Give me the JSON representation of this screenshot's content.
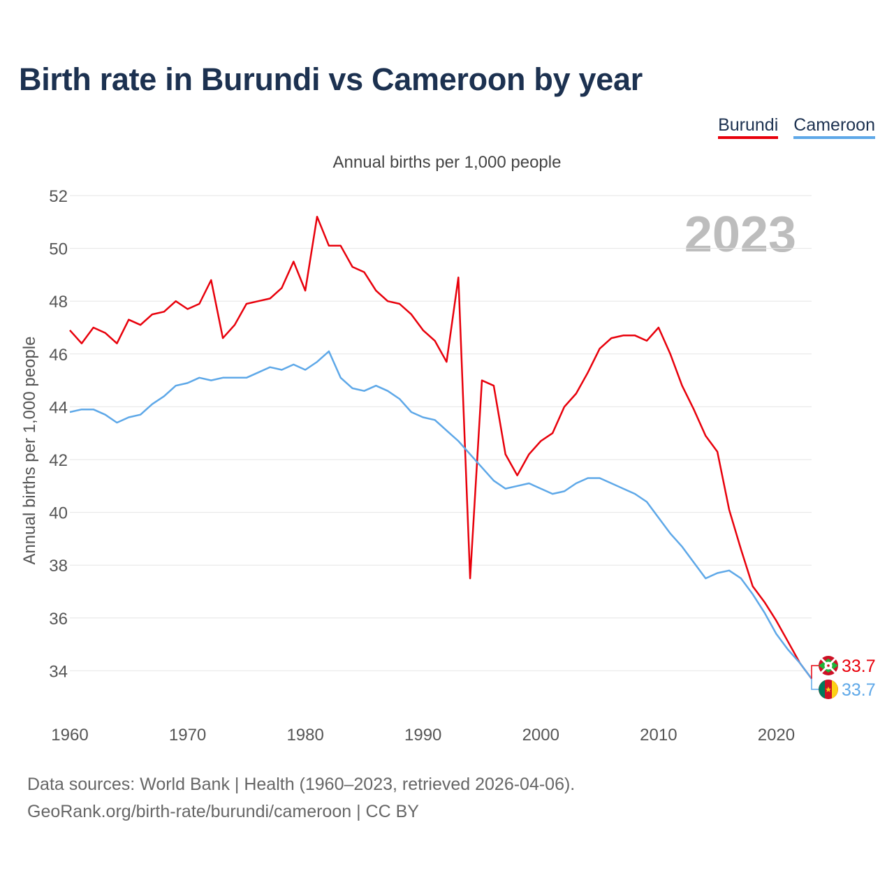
{
  "title": "Birth rate in Burundi vs Cameroon by year",
  "legend": [
    {
      "label": "Burundi",
      "color": "#e8000b"
    },
    {
      "label": "Cameroon",
      "color": "#5ea8e8"
    }
  ],
  "footer": {
    "line1": "Data sources: World Bank | Health (1960–2023, retrieved 2026-04-06).",
    "line2": "GeoRank.org/birth-rate/burundi/cameroon | CC BY"
  },
  "chart_data": {
    "type": "line",
    "title": "Annual births per 1,000 people",
    "ylabel": "Annual births per 1,000 people",
    "xlabel": "",
    "year_label": "2023",
    "xlim": [
      1960,
      2023
    ],
    "ylim": [
      32,
      52
    ],
    "yticks": [
      34,
      36,
      38,
      40,
      42,
      44,
      46,
      48,
      50,
      52
    ],
    "xticks": [
      1960,
      1970,
      1980,
      1990,
      2000,
      2010,
      2020
    ],
    "grid": true,
    "x": [
      1960,
      1961,
      1962,
      1963,
      1964,
      1965,
      1966,
      1967,
      1968,
      1969,
      1970,
      1971,
      1972,
      1973,
      1974,
      1975,
      1976,
      1977,
      1978,
      1979,
      1980,
      1981,
      1982,
      1983,
      1984,
      1985,
      1986,
      1987,
      1988,
      1989,
      1990,
      1991,
      1992,
      1993,
      1994,
      1995,
      1996,
      1997,
      1998,
      1999,
      2000,
      2001,
      2002,
      2003,
      2004,
      2005,
      2006,
      2007,
      2008,
      2009,
      2010,
      2011,
      2012,
      2013,
      2014,
      2015,
      2016,
      2017,
      2018,
      2019,
      2020,
      2021,
      2022,
      2023
    ],
    "series": [
      {
        "name": "Burundi",
        "color": "#e8000b",
        "end_label": "33.7",
        "values": [
          46.9,
          46.4,
          47.0,
          46.8,
          46.4,
          47.3,
          47.1,
          47.5,
          47.6,
          48.0,
          47.7,
          47.9,
          48.8,
          46.6,
          47.1,
          47.9,
          48.0,
          48.1,
          48.5,
          49.5,
          48.4,
          51.2,
          50.1,
          50.1,
          49.3,
          49.1,
          48.4,
          48.0,
          47.9,
          47.5,
          46.9,
          46.5,
          45.7,
          48.9,
          37.5,
          45.0,
          44.8,
          42.2,
          41.4,
          42.2,
          42.7,
          43.0,
          44.0,
          44.5,
          45.3,
          46.2,
          46.6,
          46.7,
          46.7,
          46.5,
          47.0,
          46.0,
          44.8,
          43.9,
          42.9,
          42.3,
          40.1,
          38.6,
          37.2,
          36.6,
          35.9,
          35.1,
          34.3,
          33.7
        ]
      },
      {
        "name": "Cameroon",
        "color": "#5ea8e8",
        "end_label": "33.7",
        "values": [
          43.8,
          43.9,
          43.9,
          43.7,
          43.4,
          43.6,
          43.7,
          44.1,
          44.4,
          44.8,
          44.9,
          45.1,
          45.0,
          45.1,
          45.1,
          45.1,
          45.3,
          45.5,
          45.4,
          45.6,
          45.4,
          45.7,
          46.1,
          45.1,
          44.7,
          44.6,
          44.8,
          44.6,
          44.3,
          43.8,
          43.6,
          43.5,
          43.1,
          42.7,
          42.2,
          41.7,
          41.2,
          40.9,
          41.0,
          41.1,
          40.9,
          40.7,
          40.8,
          41.1,
          41.3,
          41.3,
          41.1,
          40.9,
          40.7,
          40.4,
          39.8,
          39.2,
          38.7,
          38.1,
          37.5,
          37.7,
          37.8,
          37.5,
          36.9,
          36.2,
          35.4,
          34.8,
          34.3,
          33.7
        ]
      }
    ]
  }
}
